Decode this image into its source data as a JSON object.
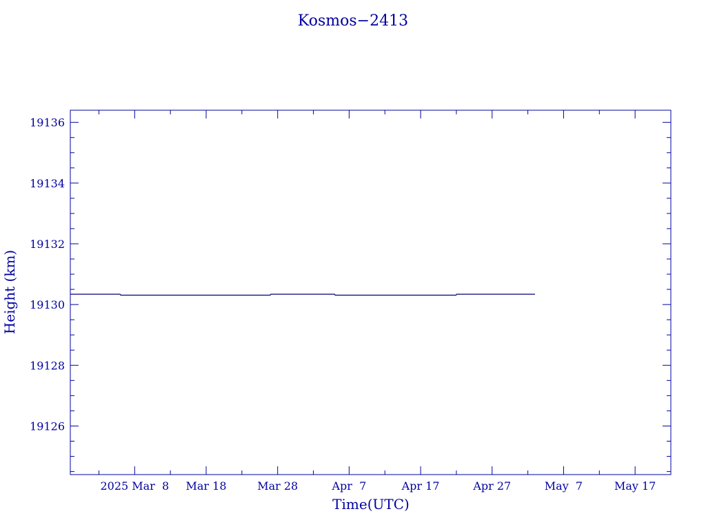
{
  "chart_data": {
    "type": "line",
    "title": "Kosmos−2413",
    "xlabel": "Time(UTC)",
    "ylabel": "Height (km)",
    "x_ticks": [
      "2025 Mar  8",
      "Mar 18",
      "Mar 28",
      "Apr  7",
      "Apr 17",
      "Apr 27",
      "May  7",
      "May 17"
    ],
    "x_tick_dates": [
      "2025-03-08",
      "2025-03-18",
      "2025-03-28",
      "2025-04-07",
      "2025-04-17",
      "2025-04-27",
      "2025-05-07",
      "2025-05-17"
    ],
    "xlim": [
      "2025-02-27",
      "2025-05-22"
    ],
    "y_ticks": [
      "19126",
      "19128",
      "19130",
      "19132",
      "19134",
      "19136"
    ],
    "ylim": [
      19124.4,
      19136.4
    ],
    "grid": false,
    "series": [
      {
        "x": [
          "2025-02-27",
          "2025-03-06",
          "2025-03-06",
          "2025-03-27",
          "2025-03-27",
          "2025-04-05",
          "2025-04-05",
          "2025-04-22",
          "2025-04-22",
          "2025-05-03"
        ],
        "values": [
          19130.34,
          19130.34,
          19130.31,
          19130.31,
          19130.34,
          19130.34,
          19130.31,
          19130.31,
          19130.34,
          19130.34
        ]
      }
    ],
    "colors": {
      "axis": "#0000a0",
      "line": "#00006e"
    }
  }
}
